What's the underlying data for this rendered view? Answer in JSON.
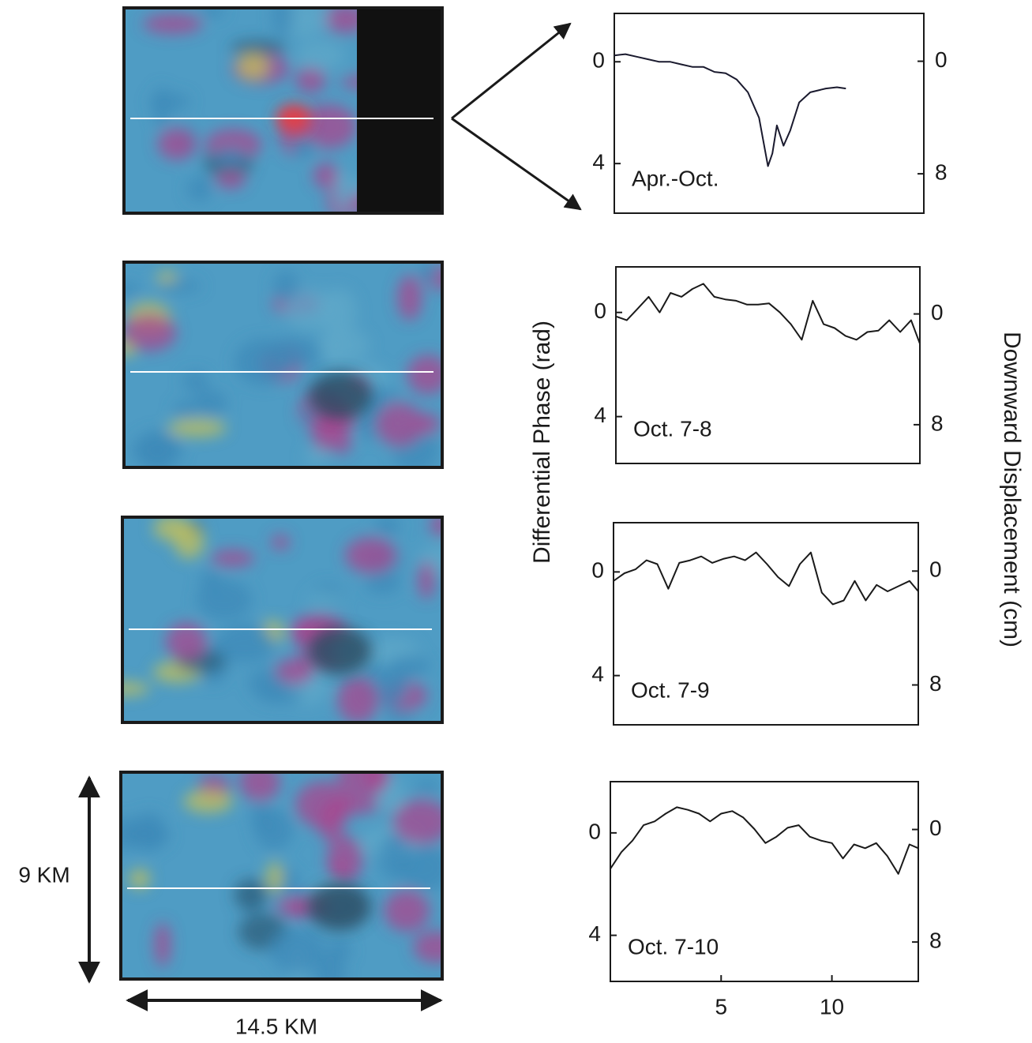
{
  "chart_data": [
    {
      "type": "line",
      "annotation": "Apr.-Oct.",
      "y_inverted": true,
      "xlim": [
        0,
        13.9
      ],
      "ylim": [
        -1.9,
        5.95
      ],
      "yticks": [
        0,
        4
      ],
      "y2lim": [
        -3.4,
        10.8
      ],
      "y2ticks": [
        0,
        8
      ],
      "series": [
        {
          "color": "#1a1a2e",
          "x": [
            0,
            0.5,
            1,
            1.5,
            2,
            2.5,
            3,
            3.5,
            4,
            4.5,
            5,
            5.5,
            6,
            6.5,
            6.9,
            7.1,
            7.3,
            7.6,
            7.9,
            8.3,
            8.8,
            9.5,
            10,
            10.4
          ],
          "values": [
            -0.25,
            -0.3,
            -0.2,
            -0.1,
            0,
            0,
            0.1,
            0.2,
            0.2,
            0.4,
            0.45,
            0.7,
            1.2,
            2.2,
            4.1,
            3.6,
            2.5,
            3.3,
            2.7,
            1.6,
            1.2,
            1.05,
            1.0,
            1.05
          ]
        }
      ]
    },
    {
      "type": "line",
      "annotation": "Oct. 7-8",
      "y_inverted": true,
      "xlim": [
        0,
        13.9
      ],
      "ylim": [
        -1.75,
        5.8
      ],
      "yticks": [
        0,
        4
      ],
      "y2lim": [
        -3.4,
        10.8
      ],
      "y2ticks": [
        0,
        8
      ],
      "series": [
        {
          "color": "#1a1a1a",
          "x": [
            0,
            0.5,
            1,
            1.5,
            2,
            2.5,
            3,
            3.5,
            4,
            4.5,
            5,
            5.5,
            6,
            6.5,
            7,
            7.5,
            8,
            8.5,
            9,
            9.5,
            10,
            10.5,
            11,
            11.5,
            12,
            12.5,
            13,
            13.5,
            13.9
          ],
          "values": [
            0.15,
            0.3,
            -0.15,
            -0.6,
            0,
            -0.75,
            -0.6,
            -0.9,
            -1.1,
            -0.6,
            -0.5,
            -0.45,
            -0.3,
            -0.3,
            -0.35,
            0,
            0.45,
            1.05,
            -0.45,
            0.45,
            0.6,
            0.9,
            1.05,
            0.75,
            0.7,
            0.3,
            0.75,
            0.3,
            1.2
          ]
        }
      ]
    },
    {
      "type": "line",
      "annotation": "Oct. 7-9",
      "y_inverted": true,
      "xlim": [
        0,
        13.9
      ],
      "ylim": [
        -1.9,
        5.9
      ],
      "yticks": [
        0,
        4
      ],
      "y2lim": [
        -3.4,
        10.8
      ],
      "y2ticks": [
        0,
        8
      ],
      "series": [
        {
          "color": "#1a1a1a",
          "x": [
            0,
            0.5,
            1,
            1.5,
            2,
            2.5,
            3,
            3.5,
            4,
            4.5,
            5,
            5.5,
            6,
            6.5,
            7,
            7.5,
            8,
            8.5,
            9,
            9.5,
            10,
            10.5,
            11,
            11.5,
            12,
            12.5,
            13,
            13.5,
            13.9
          ],
          "values": [
            0.35,
            0.05,
            -0.1,
            -0.45,
            -0.3,
            0.65,
            -0.35,
            -0.45,
            -0.6,
            -0.35,
            -0.5,
            -0.6,
            -0.45,
            -0.75,
            -0.3,
            0.2,
            0.55,
            -0.3,
            -0.75,
            0.8,
            1.25,
            1.1,
            0.35,
            1.1,
            0.5,
            0.75,
            0.55,
            0.35,
            0.75
          ]
        }
      ]
    },
    {
      "type": "line",
      "annotation": "Oct. 7-10",
      "y_inverted": true,
      "xlim": [
        0,
        13.9
      ],
      "xticks": [
        5,
        10
      ],
      "ylim": [
        -2.0,
        5.8
      ],
      "yticks": [
        0,
        4
      ],
      "y2lim": [
        -3.4,
        10.8
      ],
      "y2ticks": [
        0,
        8
      ],
      "series": [
        {
          "color": "#1a1a1a",
          "x": [
            0,
            0.5,
            1,
            1.5,
            2,
            2.5,
            3,
            3.5,
            4,
            4.5,
            5,
            5.5,
            6,
            6.5,
            7,
            7.5,
            8,
            8.5,
            9,
            9.5,
            10,
            10.5,
            11,
            11.5,
            12,
            12.5,
            13,
            13.5,
            13.9
          ],
          "values": [
            1.4,
            0.75,
            0.3,
            -0.3,
            -0.45,
            -0.75,
            -1.0,
            -0.9,
            -0.75,
            -0.45,
            -0.75,
            -0.85,
            -0.6,
            -0.15,
            0.4,
            0.15,
            -0.2,
            -0.3,
            0.15,
            0.3,
            0.4,
            1.0,
            0.45,
            0.6,
            0.4,
            0.9,
            1.6,
            0.45,
            0.6
          ]
        }
      ]
    }
  ],
  "figure": {
    "ylabel": "Differential Phase (rad)",
    "y2label": "Downward Displacement (cm)",
    "height_label": "9 KM",
    "width_label": "14.5 KM"
  }
}
